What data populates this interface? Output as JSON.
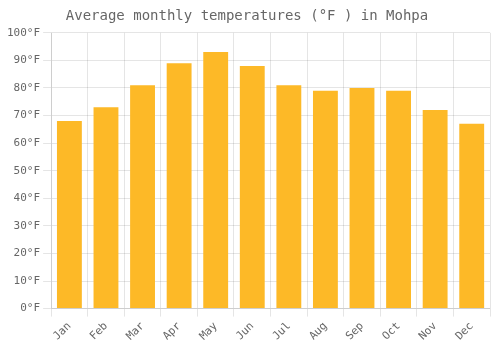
{
  "chart_data": {
    "type": "bar",
    "title": "Average monthly temperatures (°F ) in Mohpa",
    "categories": [
      "Jan",
      "Feb",
      "Mar",
      "Apr",
      "May",
      "Jun",
      "Jul",
      "Aug",
      "Sep",
      "Oct",
      "Nov",
      "Dec"
    ],
    "values": [
      68,
      73,
      81,
      89,
      93,
      88,
      81,
      79,
      80,
      79,
      72,
      67
    ],
    "color": "#FDB927",
    "ylim": [
      0,
      100
    ],
    "yticks": [
      {
        "value": 0,
        "label": "0°F"
      },
      {
        "value": 10,
        "label": "10°F"
      },
      {
        "value": 20,
        "label": "20°F"
      },
      {
        "value": 30,
        "label": "30°F"
      },
      {
        "value": 40,
        "label": "40°F"
      },
      {
        "value": 50,
        "label": "50°F"
      },
      {
        "value": 60,
        "label": "60°F"
      },
      {
        "value": 70,
        "label": "70°F"
      },
      {
        "value": 80,
        "label": "80°F"
      },
      {
        "value": 90,
        "label": "90°F"
      },
      {
        "value": 100,
        "label": "100°F"
      }
    ],
    "grid": true
  }
}
